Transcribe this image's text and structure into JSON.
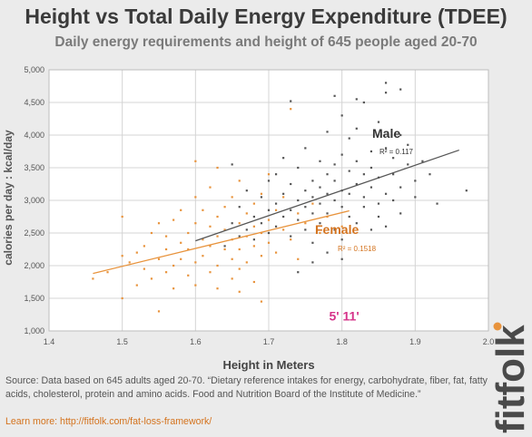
{
  "title": "Height vs Total Daily Energy Expenditure (TDEE)",
  "subtitle": "Daily energy requirements and height of 645 people aged 20-70",
  "source": "Source: Data based on 645 adults aged 20-70. “Dietary reference intakes for energy, carbohydrate, fiber, fat, fatty acids, cholesterol, protein and amino acids. Food and Nutrition Board of the Institute of Medicine.”",
  "learn_more": "Learn more: http://fitfolk.com/fat-loss-framework/",
  "brand": "fitfolk",
  "colors": {
    "male": "#555555",
    "female": "#e8933c",
    "highlight": "#d6338a",
    "female_label": "#d4731e"
  },
  "chart_data": {
    "type": "scatter",
    "xlabel": "Height in Meters",
    "ylabel": "calories per day : kcal/day",
    "xlim": [
      1.4,
      2.0
    ],
    "ylim": [
      1000,
      5000
    ],
    "x_ticks": [
      "1.4",
      "1.5",
      "1.6",
      "1.7",
      "1.8",
      "1.9",
      "2.0"
    ],
    "y_ticks": [
      "1,000",
      "1,500",
      "2,000",
      "2,500",
      "3,000",
      "3,500",
      "4,000",
      "4,500",
      "5,000"
    ],
    "grid": true,
    "series": [
      {
        "name": "Male",
        "r2_label": "R² = 0.117",
        "trend": [
          [
            1.6,
            2380
          ],
          [
            1.96,
            3770
          ]
        ],
        "points": [
          [
            1.64,
            2300
          ],
          [
            1.65,
            2650
          ],
          [
            1.65,
            3550
          ],
          [
            1.66,
            2450
          ],
          [
            1.66,
            2900
          ],
          [
            1.67,
            2550
          ],
          [
            1.67,
            3150
          ],
          [
            1.68,
            2750
          ],
          [
            1.68,
            2400
          ],
          [
            1.69,
            3050
          ],
          [
            1.69,
            2650
          ],
          [
            1.7,
            2850
          ],
          [
            1.7,
            3300
          ],
          [
            1.7,
            2500
          ],
          [
            1.71,
            3400
          ],
          [
            1.71,
            2950
          ],
          [
            1.71,
            2600
          ],
          [
            1.72,
            3100
          ],
          [
            1.72,
            2750
          ],
          [
            1.72,
            3650
          ],
          [
            1.73,
            2850
          ],
          [
            1.73,
            3250
          ],
          [
            1.73,
            2450
          ],
          [
            1.74,
            3000
          ],
          [
            1.74,
            3500
          ],
          [
            1.74,
            2700
          ],
          [
            1.75,
            3150
          ],
          [
            1.75,
            2900
          ],
          [
            1.75,
            3800
          ],
          [
            1.75,
            2550
          ],
          [
            1.76,
            3300
          ],
          [
            1.76,
            2800
          ],
          [
            1.76,
            3050
          ],
          [
            1.76,
            2350
          ],
          [
            1.77,
            3600
          ],
          [
            1.77,
            2950
          ],
          [
            1.77,
            3200
          ],
          [
            1.77,
            2650
          ],
          [
            1.78,
            3400
          ],
          [
            1.78,
            4050
          ],
          [
            1.78,
            2800
          ],
          [
            1.78,
            3100
          ],
          [
            1.78,
            2200
          ],
          [
            1.79,
            3550
          ],
          [
            1.79,
            3000
          ],
          [
            1.79,
            2550
          ],
          [
            1.79,
            3300
          ],
          [
            1.8,
            3700
          ],
          [
            1.8,
            2900
          ],
          [
            1.8,
            3150
          ],
          [
            1.8,
            4300
          ],
          [
            1.8,
            2400
          ],
          [
            1.81,
            3450
          ],
          [
            1.81,
            2750
          ],
          [
            1.81,
            3950
          ],
          [
            1.81,
            3100
          ],
          [
            1.82,
            3600
          ],
          [
            1.82,
            3250
          ],
          [
            1.82,
            2650
          ],
          [
            1.82,
            4100
          ],
          [
            1.83,
            3400
          ],
          [
            1.83,
            2900
          ],
          [
            1.83,
            4500
          ],
          [
            1.83,
            3050
          ],
          [
            1.84,
            3750
          ],
          [
            1.84,
            3200
          ],
          [
            1.84,
            2550
          ],
          [
            1.84,
            3500
          ],
          [
            1.85,
            4200
          ],
          [
            1.85,
            2950
          ],
          [
            1.85,
            3350
          ],
          [
            1.85,
            2750
          ],
          [
            1.86,
            3800
          ],
          [
            1.86,
            3100
          ],
          [
            1.86,
            4650
          ],
          [
            1.86,
            2600
          ],
          [
            1.87,
            3650
          ],
          [
            1.87,
            3000
          ],
          [
            1.87,
            3400
          ],
          [
            1.88,
            4000
          ],
          [
            1.88,
            3200
          ],
          [
            1.88,
            2800
          ],
          [
            1.89,
            3550
          ],
          [
            1.89,
            3850
          ],
          [
            1.9,
            3300
          ],
          [
            1.9,
            3050
          ],
          [
            1.91,
            3600
          ],
          [
            1.92,
            3400
          ],
          [
            1.93,
            2950
          ],
          [
            1.97,
            3150
          ],
          [
            1.73,
            4520
          ],
          [
            1.79,
            4600
          ],
          [
            1.86,
            4800
          ],
          [
            1.88,
            4700
          ],
          [
            1.82,
            4550
          ],
          [
            1.76,
            2050
          ],
          [
            1.74,
            1900
          ],
          [
            1.8,
            2100
          ]
        ]
      },
      {
        "name": "Female",
        "r2_label": "R² = 0.1518",
        "trend": [
          [
            1.46,
            1880
          ],
          [
            1.81,
            2840
          ]
        ],
        "points": [
          [
            1.46,
            1800
          ],
          [
            1.48,
            1900
          ],
          [
            1.5,
            1500
          ],
          [
            1.5,
            2150
          ],
          [
            1.5,
            2750
          ],
          [
            1.51,
            2050
          ],
          [
            1.52,
            2200
          ],
          [
            1.52,
            1700
          ],
          [
            1.53,
            2300
          ],
          [
            1.53,
            1950
          ],
          [
            1.54,
            2500
          ],
          [
            1.54,
            1800
          ],
          [
            1.55,
            2100
          ],
          [
            1.55,
            2650
          ],
          [
            1.55,
            1300
          ],
          [
            1.56,
            2250
          ],
          [
            1.56,
            1900
          ],
          [
            1.56,
            2450
          ],
          [
            1.57,
            2000
          ],
          [
            1.57,
            2700
          ],
          [
            1.57,
            1650
          ],
          [
            1.58,
            2350
          ],
          [
            1.58,
            2100
          ],
          [
            1.58,
            2850
          ],
          [
            1.59,
            1850
          ],
          [
            1.59,
            2500
          ],
          [
            1.59,
            2250
          ],
          [
            1.6,
            2050
          ],
          [
            1.6,
            2650
          ],
          [
            1.6,
            1700
          ],
          [
            1.6,
            3050
          ],
          [
            1.61,
            2400
          ],
          [
            1.61,
            2150
          ],
          [
            1.61,
            2850
          ],
          [
            1.62,
            1900
          ],
          [
            1.62,
            2600
          ],
          [
            1.62,
            2300
          ],
          [
            1.62,
            3200
          ],
          [
            1.63,
            2000
          ],
          [
            1.63,
            2750
          ],
          [
            1.63,
            2450
          ],
          [
            1.63,
            1650
          ],
          [
            1.64,
            2250
          ],
          [
            1.64,
            2900
          ],
          [
            1.64,
            2550
          ],
          [
            1.65,
            2100
          ],
          [
            1.65,
            3050
          ],
          [
            1.65,
            2400
          ],
          [
            1.65,
            1800
          ],
          [
            1.66,
            2650
          ],
          [
            1.66,
            2250
          ],
          [
            1.66,
            3300
          ],
          [
            1.66,
            1950
          ],
          [
            1.67,
            2800
          ],
          [
            1.67,
            2450
          ],
          [
            1.67,
            2050
          ],
          [
            1.68,
            2950
          ],
          [
            1.68,
            2300
          ],
          [
            1.68,
            2600
          ],
          [
            1.68,
            1750
          ],
          [
            1.69,
            3100
          ],
          [
            1.69,
            2500
          ],
          [
            1.69,
            2150
          ],
          [
            1.7,
            2700
          ],
          [
            1.7,
            2350
          ],
          [
            1.7,
            3400
          ],
          [
            1.71,
            2850
          ],
          [
            1.71,
            2200
          ],
          [
            1.72,
            2550
          ],
          [
            1.72,
            3050
          ],
          [
            1.73,
            4400
          ],
          [
            1.73,
            2400
          ],
          [
            1.74,
            2800
          ],
          [
            1.74,
            2100
          ],
          [
            1.75,
            2650
          ],
          [
            1.76,
            2950
          ],
          [
            1.77,
            2500
          ],
          [
            1.78,
            2750
          ],
          [
            1.8,
            2600
          ],
          [
            1.6,
            3600
          ],
          [
            1.63,
            3500
          ],
          [
            1.69,
            1450
          ],
          [
            1.66,
            1600
          ]
        ]
      }
    ],
    "annotations": [
      {
        "text": "5' 11'",
        "x": 1.803,
        "y": 1160
      }
    ]
  }
}
